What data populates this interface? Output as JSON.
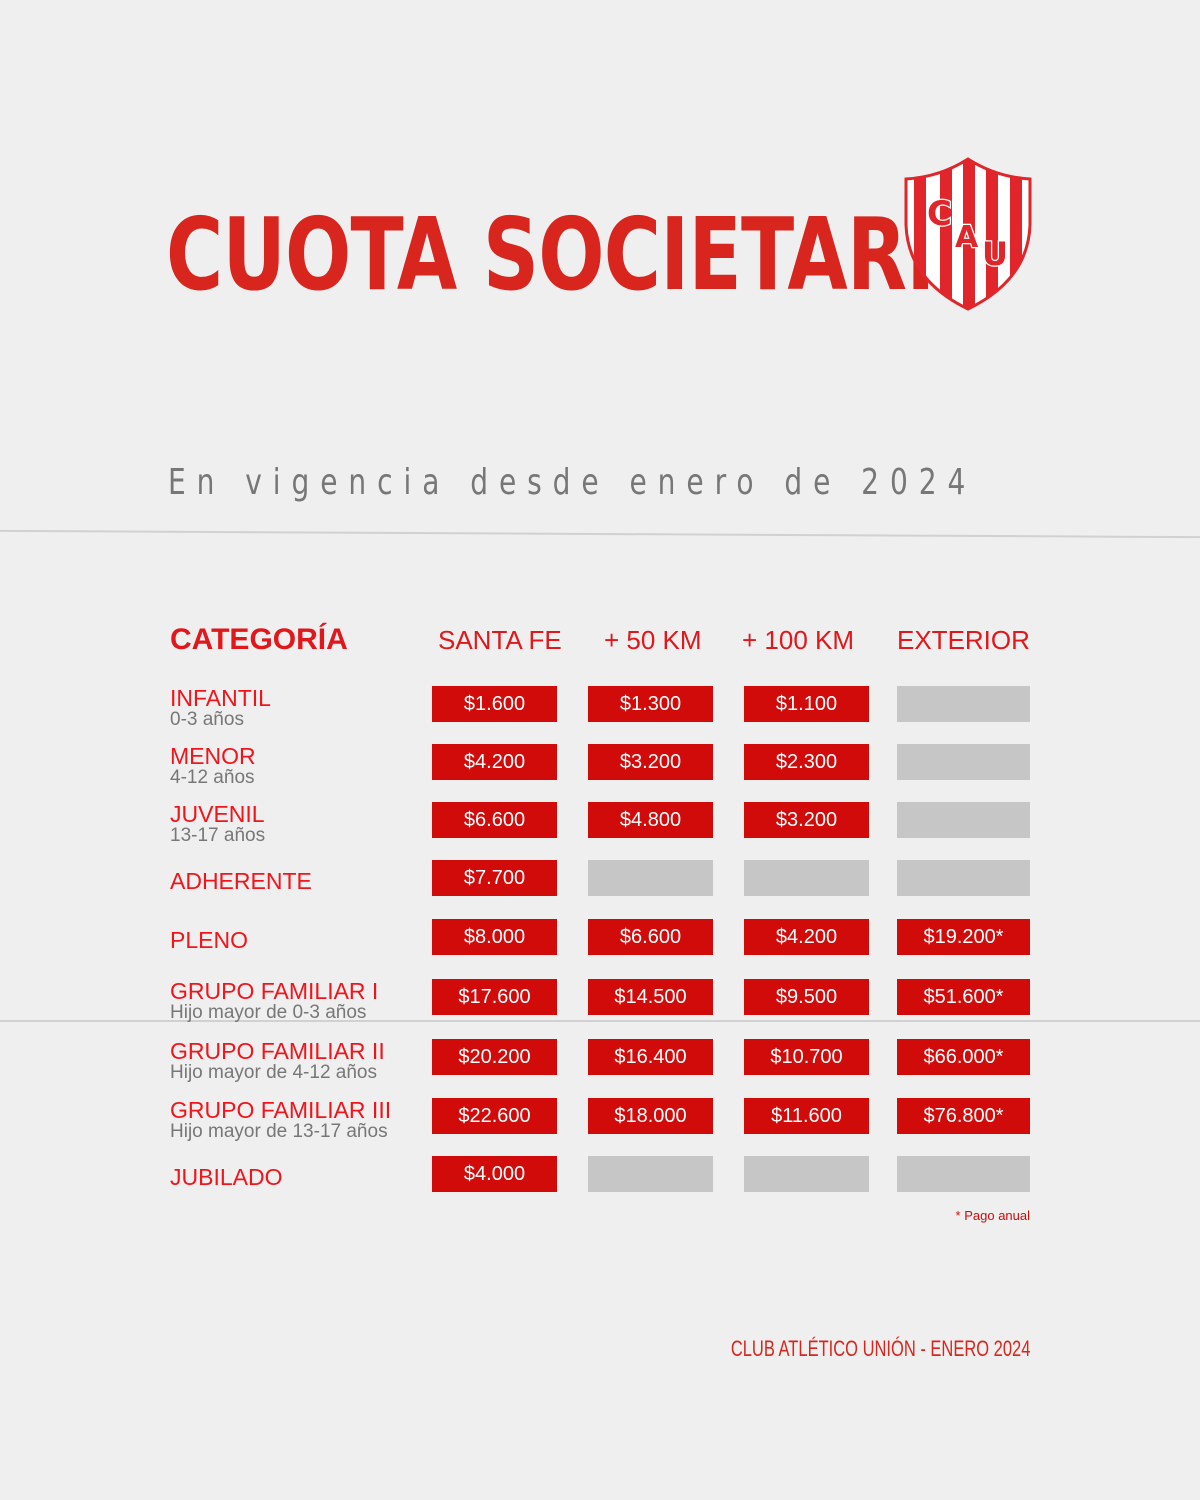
{
  "title": "CUOTA SOCIETARIA",
  "subtitle": "En vigencia desde enero de 2024",
  "logo": {
    "letters": "CAU",
    "colors": {
      "red": "#e0262a",
      "white": "#ffffff"
    }
  },
  "table": {
    "headers": [
      "CATEGORÍA",
      "SANTA FE",
      "+ 50 KM",
      "+ 100 KM",
      "EXTERIOR"
    ],
    "rows": [
      {
        "name": "INFANTIL",
        "sub": "0-3 años",
        "values": [
          "$1.600",
          "$1.300",
          "$1.100",
          ""
        ]
      },
      {
        "name": "MENOR",
        "sub": "4-12 años",
        "values": [
          "$4.200",
          "$3.200",
          "$2.300",
          ""
        ]
      },
      {
        "name": "JUVENIL",
        "sub": "13-17 años",
        "values": [
          "$6.600",
          "$4.800",
          "$3.200",
          ""
        ]
      },
      {
        "name": "ADHERENTE",
        "sub": "",
        "values": [
          "$7.700",
          "",
          "",
          ""
        ]
      },
      {
        "name": "PLENO",
        "sub": "",
        "values": [
          "$8.000",
          "$6.600",
          "$4.200",
          "$19.200*"
        ]
      },
      {
        "name": "GRUPO FAMILIAR I",
        "sub": "Hijo mayor de 0-3 años",
        "values": [
          "$17.600",
          "$14.500",
          "$9.500",
          "$51.600*"
        ]
      },
      {
        "name": "GRUPO FAMILIAR II",
        "sub": "Hijo mayor de 4-12 años",
        "values": [
          "$20.200",
          "$16.400",
          "$10.700",
          "$66.000*"
        ]
      },
      {
        "name": "GRUPO FAMILIAR III",
        "sub": "Hijo mayor de 13-17 años",
        "values": [
          "$22.600",
          "$18.000",
          "$11.600",
          "$76.800*"
        ]
      },
      {
        "name": "JUBILADO",
        "sub": "",
        "values": [
          "$4.000",
          "",
          "",
          ""
        ]
      }
    ]
  },
  "note": "* Pago anual",
  "footer": "CLUB ATLÉTICO UNIÓN - ENERO 2024",
  "colors": {
    "accent": "#d10a0a",
    "empty_cell": "#c6c6c6",
    "background": "#efefef"
  }
}
